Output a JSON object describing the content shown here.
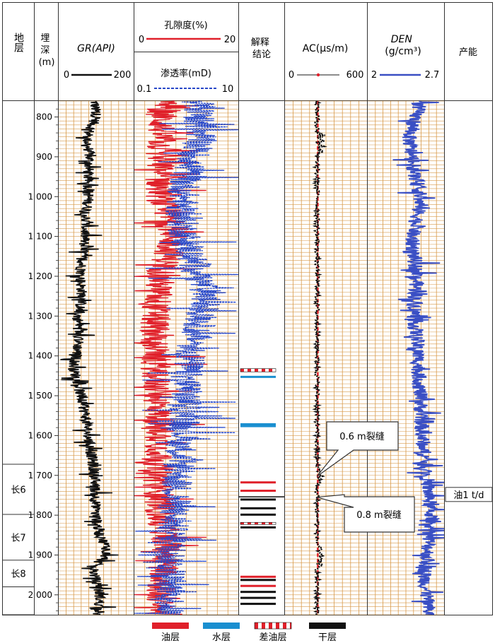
{
  "chart_data": {
    "type": "line",
    "headers": {
      "strata": "地层",
      "depth": "埋深\n(m)",
      "gr": "GR(API)",
      "por": "孔隙度(%)",
      "perm": "渗透率(mD)",
      "interp": "解释\n结论",
      "ac": "AC(μs/m)",
      "den": "DEN\n(g/cm³)",
      "prod": "产能"
    },
    "scales": {
      "gr": {
        "min": "0",
        "max": "200"
      },
      "por": {
        "min": "0",
        "max": "20"
      },
      "perm": {
        "min": "0.1",
        "max": "10"
      },
      "ac": {
        "min": "0",
        "max": "600"
      },
      "den": {
        "min": "2",
        "max": "2.7"
      }
    },
    "depth_range": [
      760,
      2050
    ],
    "depth_ticks": [
      "800",
      "900",
      "1 000",
      "1 100",
      "1 200",
      "1 300",
      "1 400",
      "1 500",
      "1 600",
      "1 700",
      "1 800",
      "1 900",
      "2 000"
    ],
    "depth_tick_values": [
      800,
      900,
      1000,
      1100,
      1200,
      1300,
      1400,
      1500,
      1600,
      1700,
      1800,
      1900,
      2000
    ],
    "strata": [
      {
        "label": "",
        "top": 760,
        "bottom": 1672
      },
      {
        "label": "长6",
        "top": 1672,
        "bottom": 1798
      },
      {
        "label": "长7",
        "top": 1798,
        "bottom": 1913
      },
      {
        "label": "长8",
        "top": 1913,
        "bottom": 1980
      },
      {
        "label": "",
        "top": 1980,
        "bottom": 2050
      }
    ],
    "interpretation": [
      {
        "type": "poor_oil",
        "top": 1432,
        "bottom": 1440
      },
      {
        "type": "water",
        "top": 1450,
        "bottom": 1455
      },
      {
        "type": "water",
        "top": 1569,
        "bottom": 1579
      },
      {
        "type": "oil",
        "top": 1715,
        "bottom": 1717
      },
      {
        "type": "oil",
        "top": 1736,
        "bottom": 1738
      },
      {
        "type": "dry",
        "top": 1758,
        "bottom": 1760
      },
      {
        "type": "dry",
        "top": 1780,
        "bottom": 1784
      },
      {
        "type": "dry",
        "top": 1796,
        "bottom": 1800
      },
      {
        "type": "poor_oil",
        "top": 1818,
        "bottom": 1822
      },
      {
        "type": "dry",
        "top": 1828,
        "bottom": 1831
      },
      {
        "type": "oil",
        "top": 1952,
        "bottom": 1955
      },
      {
        "type": "dry",
        "top": 1960,
        "bottom": 1963
      },
      {
        "type": "oil",
        "top": 1975,
        "bottom": 1977
      },
      {
        "type": "dry",
        "top": 1990,
        "bottom": 1993
      },
      {
        "type": "dry",
        "top": 2005,
        "bottom": 2008
      },
      {
        "type": "dry",
        "top": 2020,
        "bottom": 2023
      }
    ],
    "annotations": [
      {
        "text": "0.6 m裂缝",
        "depth": 1703
      },
      {
        "text": "0.8 m裂缝",
        "depth": 1755
      }
    ],
    "production": {
      "text": "油1 t/d",
      "depth": 1748
    },
    "legend": [
      {
        "type": "oil",
        "label": "油层"
      },
      {
        "type": "water",
        "label": "水层"
      },
      {
        "type": "poor_oil",
        "label": "差油层"
      },
      {
        "type": "dry",
        "label": "干层"
      }
    ],
    "series_colors": {
      "gr": "#111111",
      "por": "#e0202a",
      "perm": "#2848c8",
      "ac_dots": "#111111",
      "ac_line": "#e0202a",
      "den": "#3a4fc4",
      "water": "#1a8fd0",
      "grid": "#d89a4a"
    },
    "series": [
      {
        "key": "gr",
        "profile": [
          [
            760,
            95
          ],
          [
            800,
            100
          ],
          [
            850,
            75
          ],
          [
            900,
            82
          ],
          [
            950,
            78
          ],
          [
            1000,
            80
          ],
          [
            1050,
            72
          ],
          [
            1100,
            70
          ],
          [
            1150,
            64
          ],
          [
            1200,
            58
          ],
          [
            1250,
            62
          ],
          [
            1300,
            52
          ],
          [
            1350,
            55
          ],
          [
            1400,
            48
          ],
          [
            1430,
            38
          ],
          [
            1460,
            50
          ],
          [
            1500,
            58
          ],
          [
            1550,
            72
          ],
          [
            1600,
            78
          ],
          [
            1650,
            88
          ],
          [
            1700,
            95
          ],
          [
            1750,
            98
          ],
          [
            1800,
            98
          ],
          [
            1850,
            110
          ],
          [
            1880,
            128
          ],
          [
            1900,
            128
          ],
          [
            1930,
            92
          ],
          [
            1950,
            95
          ],
          [
            2000,
            110
          ],
          [
            2050,
            108
          ]
        ]
      },
      {
        "key": "por",
        "profile": [
          [
            760,
            5.5
          ],
          [
            900,
            5
          ],
          [
            1000,
            5
          ],
          [
            1050,
            6.5
          ],
          [
            1100,
            7.5
          ],
          [
            1150,
            6.5
          ],
          [
            1200,
            5
          ],
          [
            1300,
            4
          ],
          [
            1400,
            4
          ],
          [
            1500,
            4.5
          ],
          [
            1600,
            5
          ],
          [
            1700,
            4.5
          ],
          [
            1800,
            5
          ],
          [
            1850,
            6
          ],
          [
            1900,
            6.5
          ],
          [
            2000,
            5
          ],
          [
            2050,
            4.5
          ]
        ]
      },
      {
        "key": "perm",
        "profile": [
          [
            760,
            6.2
          ],
          [
            850,
            6.5
          ],
          [
            950,
            5
          ],
          [
            1050,
            4.5
          ],
          [
            1150,
            5.5
          ],
          [
            1250,
            7
          ],
          [
            1350,
            6
          ],
          [
            1450,
            5
          ],
          [
            1550,
            5
          ],
          [
            1650,
            4.5
          ],
          [
            1750,
            4
          ],
          [
            1850,
            3.6
          ],
          [
            1950,
            3.6
          ],
          [
            2050,
            3.5
          ]
        ]
      },
      {
        "key": "ac",
        "profile": [
          [
            760,
            240
          ],
          [
            2050,
            240
          ]
        ]
      },
      {
        "key": "den",
        "profile": [
          [
            760,
            2.48
          ],
          [
            850,
            2.38
          ],
          [
            900,
            2.4
          ],
          [
            1000,
            2.48
          ],
          [
            1080,
            2.44
          ],
          [
            1100,
            2.4
          ],
          [
            1200,
            2.45
          ],
          [
            1300,
            2.43
          ],
          [
            1400,
            2.46
          ],
          [
            1500,
            2.48
          ],
          [
            1600,
            2.5
          ],
          [
            1700,
            2.54
          ],
          [
            1800,
            2.58
          ],
          [
            1900,
            2.55
          ],
          [
            1950,
            2.52
          ],
          [
            2050,
            2.56
          ]
        ]
      }
    ]
  }
}
